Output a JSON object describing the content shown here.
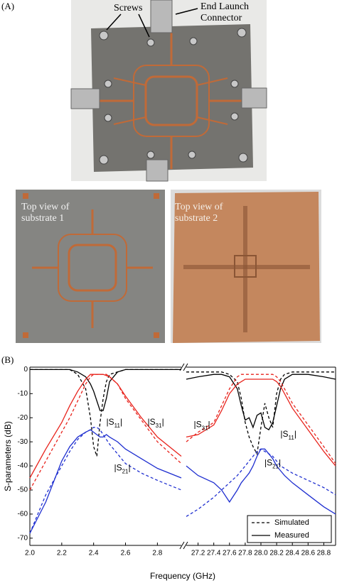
{
  "panel_a": {
    "label": "(A)",
    "screws": "Screws",
    "connector": "End Launch Connector",
    "substrate_1": "Top view of substrate 1",
    "substrate_2": "Top view of substrate 2"
  },
  "panel_b": {
    "label": "(B)"
  },
  "chart_data": [
    {
      "type": "line",
      "ylabel": "S-parameters (dB)",
      "xlabel": "Frequency (GHz)",
      "xlim": [
        2.0,
        2.95
      ],
      "ylim": [
        -73,
        1
      ],
      "xticks": [
        {
          "value": 2.0,
          "label": "2.0"
        },
        2.2,
        2.4,
        2.6,
        2.8
      ],
      "yticks": [
        0,
        -10,
        -20,
        -30,
        -40,
        -50,
        -60,
        -70
      ],
      "x": [
        2.0,
        2.1,
        2.2,
        2.25,
        2.3,
        2.35,
        2.38,
        2.4,
        2.42,
        2.44,
        2.46,
        2.48,
        2.5,
        2.55,
        2.6,
        2.7,
        2.8,
        2.95
      ],
      "series": [
        {
          "color": "#000000",
          "style": "solid",
          "values": [
            0,
            0,
            0,
            0,
            -1,
            -3,
            -6,
            -9,
            -13,
            -17,
            -17,
            -12,
            -5,
            -1,
            0,
            0,
            0,
            0
          ]
        },
        {
          "color": "#000000",
          "style": "dashed",
          "values": [
            0,
            0,
            0,
            0,
            -2,
            -8,
            -20,
            -32,
            -36,
            -22,
            -12,
            -5,
            -2,
            -1,
            0,
            0,
            0,
            0
          ]
        },
        {
          "color": "#e8231c",
          "style": "solid",
          "values": [
            -45,
            -33,
            -22,
            -15,
            -9,
            -4,
            -2,
            -2,
            -2,
            -2,
            -2,
            -2.5,
            -3,
            -6,
            -11,
            -20,
            -28,
            -36
          ]
        },
        {
          "color": "#e8231c",
          "style": "dashed",
          "values": [
            -50,
            -38,
            -26,
            -20,
            -13,
            -6,
            -3,
            -2,
            -2,
            -2,
            -2,
            -2,
            -3,
            -6,
            -12,
            -21,
            -30,
            -39
          ]
        },
        {
          "color": "#1f2fd0",
          "style": "solid",
          "values": [
            -68,
            -55,
            -38,
            -32,
            -28,
            -26,
            -25,
            -26,
            -27,
            -28,
            -28,
            -27,
            -28,
            -30,
            -33,
            -37,
            -41,
            -45
          ]
        },
        {
          "color": "#1f2fd0",
          "style": "dashed",
          "values": [
            -68,
            -52,
            -40,
            -34,
            -29,
            -26,
            -25,
            -24,
            -24,
            -25,
            -27,
            -29,
            -31,
            -35,
            -39,
            -43,
            -46,
            -50
          ]
        }
      ],
      "annotations": [
        {
          "text": "|S11|",
          "x": 2.53,
          "y": -22
        },
        {
          "text": "|S31|",
          "x": 2.79,
          "y": -22
        },
        {
          "text": "|S21|",
          "x": 2.58,
          "y": -41
        }
      ]
    },
    {
      "type": "line",
      "xlim": [
        27.05,
        28.95
      ],
      "ylim": [
        -73,
        1
      ],
      "xticks": [
        27.2,
        27.4,
        27.6,
        27.8,
        {
          "value": 28.0,
          "label": "28.0"
        },
        28.2,
        28.4,
        28.6,
        28.8
      ],
      "x": [
        27.05,
        27.2,
        27.4,
        27.5,
        27.6,
        27.7,
        27.75,
        27.8,
        27.85,
        27.9,
        27.95,
        28.0,
        28.05,
        28.1,
        28.15,
        28.2,
        28.25,
        28.3,
        28.4,
        28.6,
        28.8,
        28.95
      ],
      "series": [
        {
          "color": "#000000",
          "style": "solid",
          "values": [
            -4,
            -3,
            -2,
            -2,
            -3,
            -8,
            -15,
            -21,
            -20,
            -24,
            -19,
            -18,
            -24,
            -25,
            -22,
            -15,
            -8,
            -4,
            -2,
            -2,
            -3,
            -4
          ]
        },
        {
          "color": "#000000",
          "style": "dashed",
          "values": [
            -1,
            -1,
            -1,
            -1,
            -2,
            -5,
            -12,
            -22,
            -28,
            -32,
            -35,
            -24,
            -14,
            -20,
            -24,
            -10,
            -4,
            -2,
            -1,
            -1,
            -1,
            -1
          ]
        },
        {
          "color": "#e8231c",
          "style": "solid",
          "values": [
            -28,
            -27,
            -23,
            -17,
            -10,
            -6,
            -5,
            -4,
            -4,
            -4,
            -4,
            -4,
            -4,
            -4,
            -4,
            -5,
            -7,
            -10,
            -16,
            -25,
            -34,
            -40
          ]
        },
        {
          "color": "#e8231c",
          "style": "dashed",
          "values": [
            -30,
            -26,
            -22,
            -15,
            -8,
            -3,
            -2,
            -2,
            -2,
            -2,
            -2,
            -2,
            -2,
            -2,
            -2,
            -3,
            -5,
            -8,
            -14,
            -23,
            -32,
            -39
          ]
        },
        {
          "color": "#1f2fd0",
          "style": "solid",
          "values": [
            -40,
            -44,
            -47,
            -50,
            -55,
            -50,
            -47,
            -45,
            -43,
            -40,
            -36,
            -33,
            -33,
            -35,
            -37,
            -40,
            -42,
            -44,
            -47,
            -52,
            -57,
            -60
          ]
        },
        {
          "color": "#1f2fd0",
          "style": "dashed",
          "values": [
            -61,
            -58,
            -53,
            -50,
            -47,
            -44,
            -42,
            -40,
            -38,
            -36,
            -34,
            -33,
            -34,
            -35,
            -36,
            -38,
            -40,
            -41,
            -43,
            -46,
            -49,
            -52
          ]
        }
      ],
      "annotations": [
        {
          "text": "|S31|",
          "x": 27.25,
          "y": -23
        },
        {
          "text": "|S11|",
          "x": 28.35,
          "y": -27
        },
        {
          "text": "|S21|",
          "x": 28.15,
          "y": -39
        }
      ],
      "legend": [
        {
          "label": "Simulated",
          "style": "dashed"
        },
        {
          "label": "Measured",
          "style": "solid"
        }
      ],
      "legend_loc": "lower right"
    }
  ]
}
